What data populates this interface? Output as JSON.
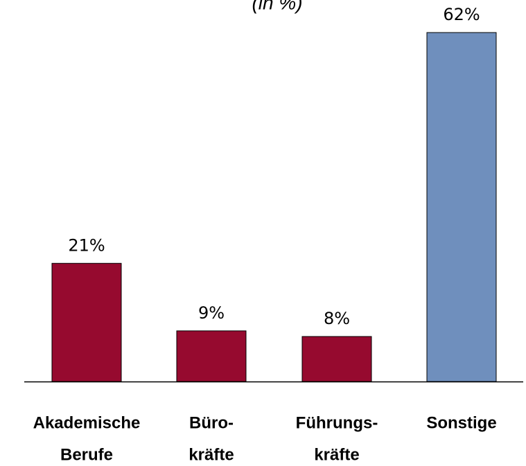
{
  "chart_data": {
    "type": "bar",
    "subtitle": "(in %)",
    "categories": [
      [
        "Akademische",
        "Berufe"
      ],
      [
        "Büro-",
        "kräfte"
      ],
      [
        "Führungs-",
        "kräfte"
      ],
      [
        "Sonstige"
      ]
    ],
    "values": [
      21,
      9,
      8,
      62
    ],
    "value_labels": [
      "21%",
      "9%",
      "8%",
      "62%"
    ],
    "colors": [
      "#960a2f",
      "#960a2f",
      "#960a2f",
      "#6f8fbd"
    ]
  }
}
